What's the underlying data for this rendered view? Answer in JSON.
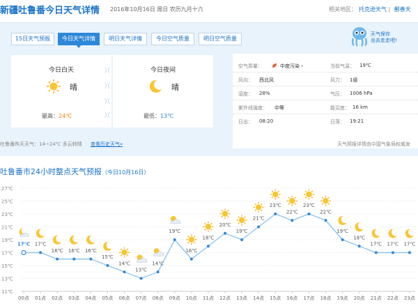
{
  "header": {
    "title": "新疆吐鲁番今日天气详情",
    "date": "2016年10月16日  周日  农历九月十六",
    "related_label": "相关地区：",
    "related_links": [
      "托克逊天气",
      "鄯善天"
    ]
  },
  "tabs": [
    {
      "label": "15日天气预报",
      "active": false
    },
    {
      "label": "今日天气详情",
      "active": true
    },
    {
      "label": "明日天气详情",
      "active": false
    },
    {
      "label": "今日空气质量",
      "active": false
    },
    {
      "label": "明日空气质量",
      "active": false
    }
  ],
  "mascot": {
    "line1": "天气保你",
    "line2": "出去走走吧!"
  },
  "day": {
    "title": "今日白天",
    "desc": "晴",
    "temp_label": "最高：",
    "temp": "24℃",
    "icon": "sun-icon"
  },
  "night": {
    "title": "今日夜间",
    "desc": "晴",
    "temp_label": "最低：",
    "temp": "13℃",
    "icon": "moon-icon"
  },
  "conditions": {
    "left": [
      {
        "label": "空气质量：",
        "value": "中度污染 ›"
      },
      {
        "label": "风向：",
        "value": "西北风"
      },
      {
        "label": "湿度：",
        "value": "28%"
      },
      {
        "label": "紫外线强度：",
        "value": "中等"
      },
      {
        "label": "日出：",
        "value": "08:20"
      }
    ],
    "right": [
      {
        "label": "当前气温：",
        "value": "19℃"
      },
      {
        "label": "风力：",
        "value": "1级"
      },
      {
        "label": "气压：",
        "value": "1006 hPa"
      },
      {
        "label": "能见度：",
        "value": "16 km"
      },
      {
        "label": "日落：",
        "value": "19:21"
      }
    ]
  },
  "footer": {
    "yesterday": "吐鲁番昨天天气：14~24℃ 多云转晴",
    "history_link": "查看历史天气»",
    "source": "天气预报详情由中国气象局权威发"
  },
  "hourly": {
    "title": "吐鲁番市24小时整点天气预报",
    "subtitle": "（今日10月16日）"
  },
  "chart_data": {
    "type": "line",
    "x": [
      "00点",
      "01点",
      "02点",
      "03点",
      "04点",
      "05点",
      "06点",
      "07点",
      "08点",
      "09点",
      "10点",
      "11点",
      "12点",
      "13点",
      "14点",
      "15点",
      "16点",
      "17点",
      "18点",
      "19点",
      "20点",
      "21点",
      "22点",
      "23点"
    ],
    "values": [
      17,
      17,
      16,
      16,
      16,
      15,
      14,
      13,
      14,
      19,
      16,
      18,
      20,
      19,
      21,
      23,
      22,
      23,
      22,
      19,
      18,
      17,
      17,
      17
    ],
    "labels": [
      "17℃",
      "17℃",
      "16℃",
      "16℃",
      "16℃",
      "15℃",
      "14℃",
      "13℃",
      "14℃",
      "19℃",
      "16℃",
      "18℃",
      "20℃",
      "19℃",
      "21℃",
      "23℃",
      "22℃",
      "23℃",
      "22℃",
      "19℃",
      "18℃",
      "17℃",
      "17℃",
      "17℃"
    ],
    "icons": [
      "partly-cloudy-night-icon",
      "moon-icon",
      "moon-icon",
      "moon-icon",
      "moon-icon",
      "moon-icon",
      "sun-icon",
      "partly-cloudy-icon",
      "partly-cloudy-icon",
      "partly-cloudy-icon",
      "sun-icon",
      "sun-icon",
      "sun-icon",
      "sun-icon",
      "sun-icon",
      "sun-icon",
      "sun-icon",
      "sun-icon",
      "sun-icon",
      "moon-icon",
      "moon-icon",
      "moon-icon",
      "moon-icon",
      "moon-icon"
    ],
    "y_ticks": [
      "27℃",
      "25℃",
      "23℃",
      "21℃",
      "19℃",
      "17℃",
      "15℃",
      "13℃",
      "11℃"
    ],
    "ylim": [
      11,
      27
    ],
    "grid": true,
    "highlight_index": 0,
    "line_color": "#8ec5f0",
    "point_color": "#2e87d9",
    "highlight_color": "#2e87d9"
  },
  "colors": {
    "accent": "#2e87d9",
    "sun": "#f7b21b",
    "moon": "#f7b21b",
    "pollution": "#e0632e"
  }
}
